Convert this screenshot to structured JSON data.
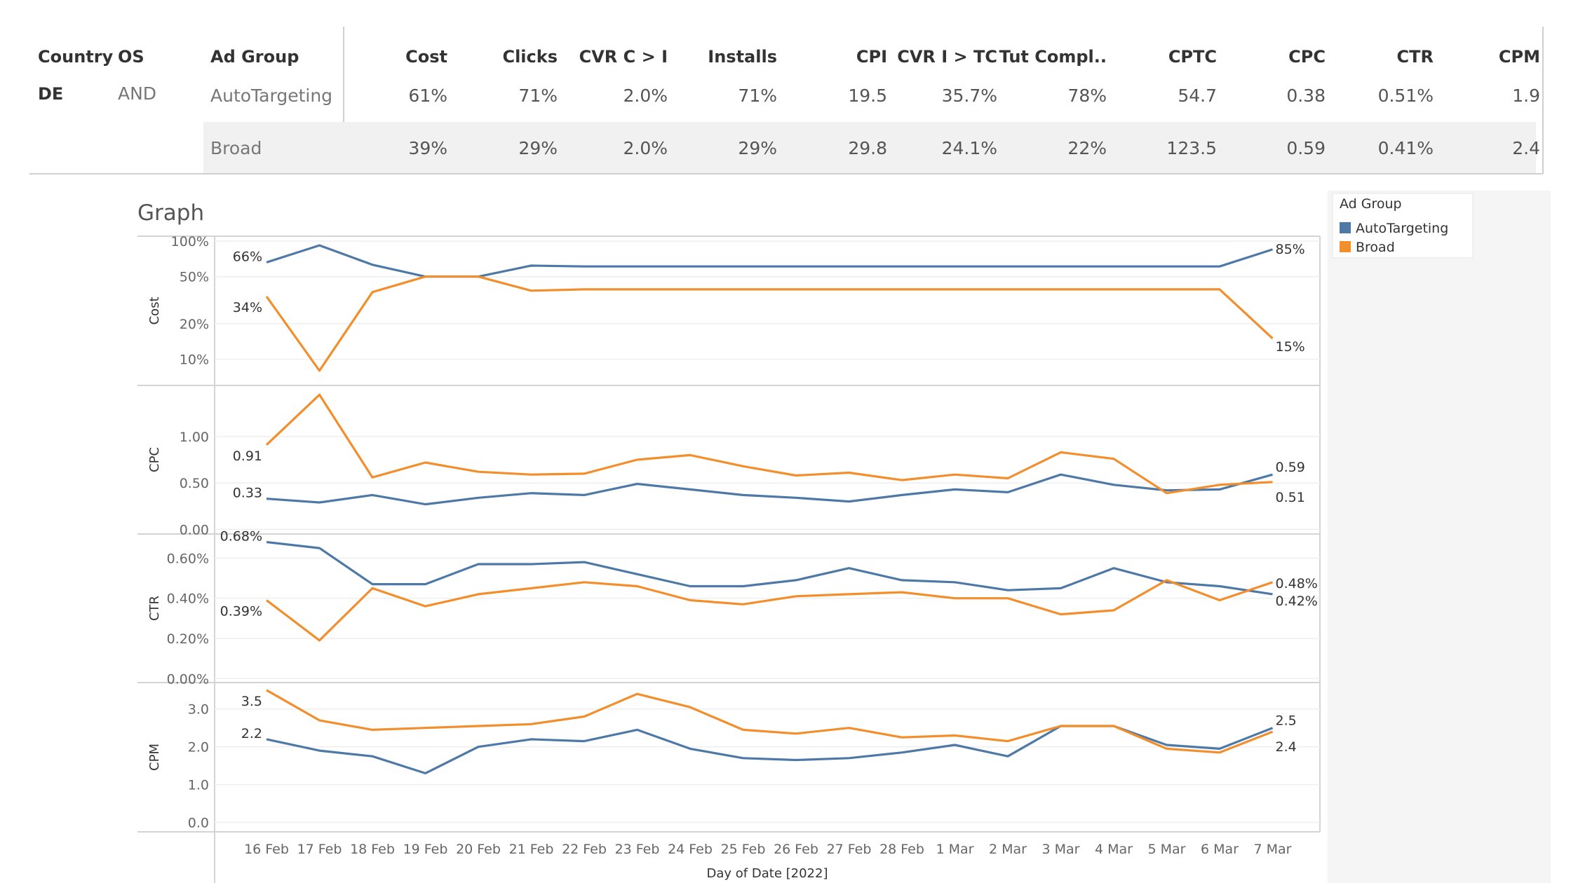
{
  "table": {
    "headers": [
      "Country",
      "OS",
      "Ad Group",
      "Cost",
      "Clicks",
      "CVR C > I",
      "Installs",
      "CPI",
      "CVR I > TC",
      "Tut Compl..",
      "CPTC",
      "CPC",
      "CTR",
      "CPM"
    ],
    "country": "DE",
    "os": "AND",
    "rows": [
      {
        "ad_group": "AutoTargeting",
        "values": [
          "61%",
          "71%",
          "2.0%",
          "71%",
          "19.5",
          "35.7%",
          "78%",
          "54.7",
          "0.38",
          "0.51%",
          "1.9"
        ]
      },
      {
        "ad_group": "Broad",
        "values": [
          "39%",
          "29%",
          "2.0%",
          "29%",
          "29.8",
          "24.1%",
          "22%",
          "123.5",
          "0.59",
          "0.41%",
          "2.4"
        ]
      }
    ]
  },
  "chart_title": "Graph",
  "legend": {
    "title": "Ad Group",
    "items": [
      {
        "name": "AutoTargeting",
        "color": "#4e79a7"
      },
      {
        "name": "Broad",
        "color": "#f28e2b"
      }
    ]
  },
  "colors": {
    "autotargeting": "#4e79a7",
    "broad": "#f28e2b"
  },
  "chart_data": {
    "type": "line",
    "x": [
      "16 Feb",
      "17 Feb",
      "18 Feb",
      "19 Feb",
      "20 Feb",
      "21 Feb",
      "22 Feb",
      "23 Feb",
      "24 Feb",
      "25 Feb",
      "26 Feb",
      "27 Feb",
      "28 Feb",
      "1 Mar",
      "2 Mar",
      "3 Mar",
      "4 Mar",
      "5 Mar",
      "6 Mar",
      "7 Mar"
    ],
    "xlabel": "Day of Date [2022]",
    "panels": [
      {
        "ylabel": "Cost",
        "scale": "log",
        "ylim": [
          6,
          110
        ],
        "ticks": [
          10,
          20,
          50,
          100
        ],
        "tick_labels": [
          "10%",
          "20%",
          "50%",
          "100%"
        ],
        "series": [
          {
            "name": "AutoTargeting",
            "values": [
              66,
              92,
              63,
              50,
              50,
              62,
              61,
              61,
              61,
              61,
              61,
              61,
              61,
              61,
              61,
              61,
              61,
              61,
              61,
              85
            ],
            "start_label": "66%",
            "end_label": "85%"
          },
          {
            "name": "Broad",
            "values": [
              34,
              8,
              37,
              50,
              50,
              38,
              39,
              39,
              39,
              39,
              39,
              39,
              39,
              39,
              39,
              39,
              39,
              39,
              39,
              15
            ],
            "start_label": "34%",
            "end_label": "15%"
          }
        ]
      },
      {
        "ylabel": "CPC",
        "scale": "linear",
        "ylim": [
          -0.05,
          1.55
        ],
        "ticks": [
          0,
          0.5,
          1.0
        ],
        "tick_labels": [
          "0.00",
          "0.50",
          "1.00"
        ],
        "series": [
          {
            "name": "AutoTargeting",
            "values": [
              0.33,
              0.29,
              0.37,
              0.27,
              0.34,
              0.39,
              0.37,
              0.49,
              0.43,
              0.37,
              0.34,
              0.3,
              0.37,
              0.43,
              0.4,
              0.59,
              0.48,
              0.42,
              0.43,
              0.59
            ],
            "start_label": "0.33",
            "end_label": "0.59"
          },
          {
            "name": "Broad",
            "values": [
              0.91,
              1.45,
              0.56,
              0.72,
              0.62,
              0.59,
              0.6,
              0.75,
              0.8,
              0.68,
              0.58,
              0.61,
              0.53,
              0.59,
              0.55,
              0.83,
              0.76,
              0.39,
              0.48,
              0.51
            ],
            "start_label": "0.91",
            "end_label": "0.51"
          }
        ]
      },
      {
        "ylabel": "CTR",
        "scale": "linear",
        "ylim": [
          -0.0002,
          0.0072
        ],
        "ticks": [
          0,
          0.002,
          0.004,
          0.006
        ],
        "tick_labels": [
          "0.00%",
          "0.20%",
          "0.40%",
          "0.60%"
        ],
        "series": [
          {
            "name": "AutoTargeting",
            "values": [
              0.0068,
              0.0065,
              0.0047,
              0.0047,
              0.0057,
              0.0057,
              0.0058,
              0.0052,
              0.0046,
              0.0046,
              0.0049,
              0.0055,
              0.0049,
              0.0048,
              0.0044,
              0.0045,
              0.0055,
              0.0048,
              0.0046,
              0.0042
            ],
            "start_label": "0.68%",
            "end_label": "0.42%"
          },
          {
            "name": "Broad",
            "values": [
              0.0039,
              0.0019,
              0.0045,
              0.0036,
              0.0042,
              0.0045,
              0.0048,
              0.0046,
              0.0039,
              0.0037,
              0.0041,
              0.0042,
              0.0043,
              0.004,
              0.004,
              0.0032,
              0.0034,
              0.0049,
              0.0039,
              0.0048
            ],
            "start_label": "0.39%",
            "end_label": "0.48%"
          }
        ]
      },
      {
        "ylabel": "CPM",
        "scale": "linear",
        "ylim": [
          -0.25,
          3.7
        ],
        "ticks": [
          0,
          1,
          2,
          3
        ],
        "tick_labels": [
          "0.0",
          "1.0",
          "2.0",
          "3.0"
        ],
        "series": [
          {
            "name": "AutoTargeting",
            "values": [
              2.2,
              1.9,
              1.75,
              1.3,
              2.0,
              2.2,
              2.15,
              2.45,
              1.95,
              1.7,
              1.65,
              1.7,
              1.85,
              2.05,
              1.75,
              2.55,
              2.55,
              2.05,
              1.95,
              2.5
            ],
            "start_label": "2.2",
            "end_label": "2.5"
          },
          {
            "name": "Broad",
            "values": [
              3.5,
              2.7,
              2.45,
              2.5,
              2.55,
              2.6,
              2.8,
              3.4,
              3.05,
              2.45,
              2.35,
              2.5,
              2.25,
              2.3,
              2.15,
              2.55,
              2.55,
              1.95,
              1.85,
              2.4
            ],
            "start_label": "3.5",
            "end_label": "2.4"
          }
        ]
      }
    ]
  }
}
